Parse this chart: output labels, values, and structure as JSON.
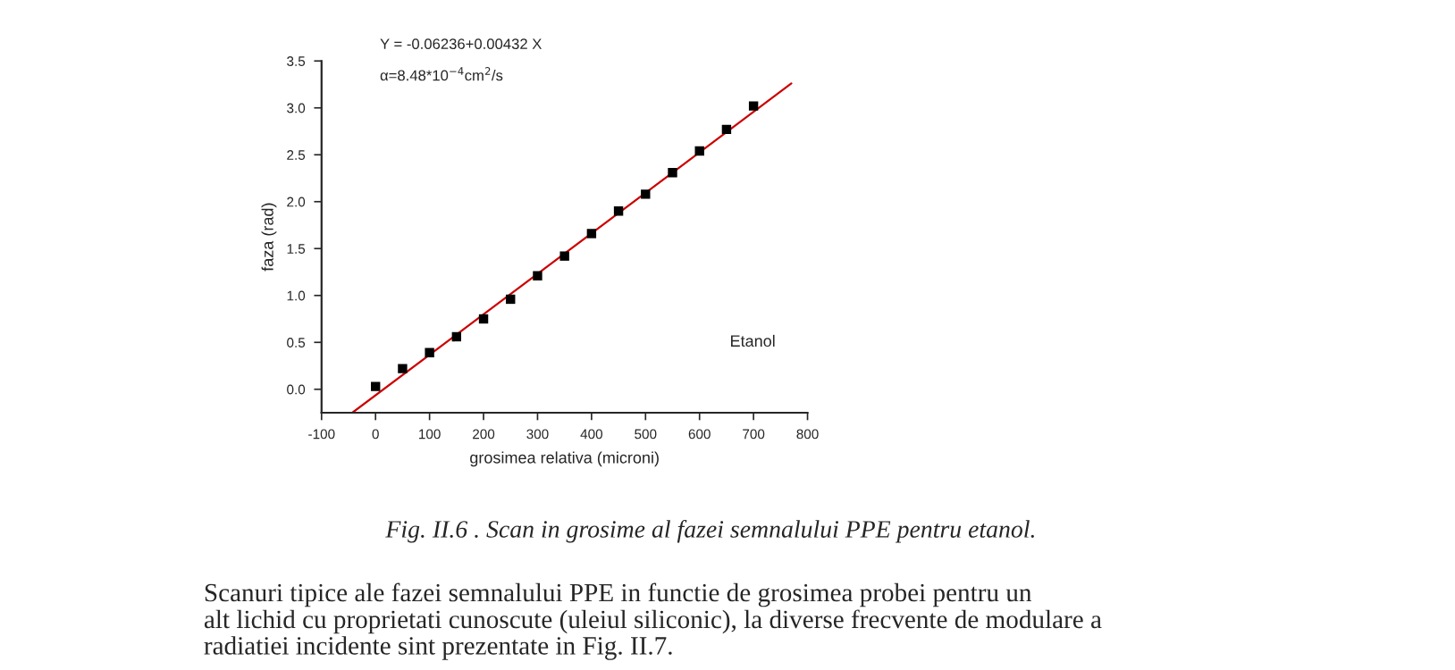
{
  "chart_data": {
    "type": "scatter",
    "xlabel": "grosimea relativa (microni)",
    "ylabel": "faza (rad)",
    "series": [
      {
        "color": "#000000",
        "marker": "square",
        "x": [
          0,
          50,
          100,
          150,
          200,
          250,
          300,
          350,
          400,
          450,
          500,
          550,
          600,
          650,
          700
        ],
        "values": [
          0.03,
          0.22,
          0.39,
          0.56,
          0.75,
          0.96,
          1.21,
          1.42,
          1.66,
          1.9,
          2.08,
          2.31,
          2.54,
          2.77,
          3.02
        ]
      },
      {
        "type": "line",
        "color": "#cc0000",
        "marker": "none",
        "line_style": "solid",
        "x": [
          -43,
          770
        ],
        "values": [
          -0.25,
          3.26
        ]
      }
    ],
    "xlim": [
      -100,
      800
    ],
    "xticks": [
      -100,
      0,
      100,
      200,
      300,
      400,
      500,
      600,
      700,
      800
    ],
    "ylim": [
      -0.25,
      3.5
    ],
    "yticks": [
      {
        "value": 0,
        "label": "0.0"
      },
      0.5,
      {
        "value": 1,
        "label": "1.0"
      },
      1.5,
      {
        "value": 2,
        "label": "2.0"
      },
      2.5,
      {
        "value": 3,
        "label": "3.0"
      },
      3.5
    ],
    "grid": false,
    "annotations": [
      "Y = -0.06236+0.00432 X",
      "α=8.48*10$^{−4}$cm$^{2}$/s",
      "Etanol",
      "Fig. II.6 . Scan in grosime al fazei semnalului PPE pentru etanol.",
      "Scanuri tipice ale fazei semnalului PPE in functie de grosimea probei pentru un\nalt lichid cu proprietati cunoscute (uleiul siliconic), la diverse frecvente de modulare a\nradiatiei incidente sint prezentate in Fig. II.7."
    ]
  }
}
